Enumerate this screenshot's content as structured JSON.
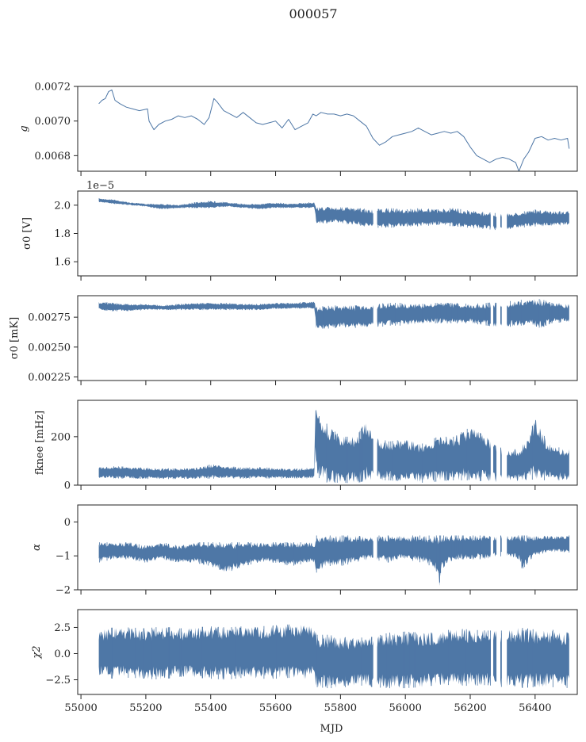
{
  "chart_data": {
    "title": "000057",
    "xlabel": "MJD",
    "xlim": [
      54990,
      56530
    ],
    "xticks": [
      55000,
      55200,
      55400,
      55600,
      55800,
      56000,
      56200,
      56400
    ],
    "color": "#4e77a6",
    "panels": [
      {
        "type": "line",
        "ylabel": "g",
        "ylim": [
          0.00671,
          0.0072
        ],
        "yticks": [
          "0.0068",
          "0.0070",
          "0.0072"
        ],
        "ytick_values": [
          0.0068,
          0.007,
          0.0072
        ],
        "offset_text": "",
        "series": {
          "x": [
            55055,
            55065,
            55075,
            55085,
            55095,
            55105,
            55120,
            55140,
            55160,
            55180,
            55205,
            55210,
            55225,
            55240,
            55260,
            55280,
            55300,
            55320,
            55340,
            55360,
            55380,
            55395,
            55410,
            55420,
            55440,
            55460,
            55480,
            55500,
            55520,
            55540,
            55560,
            55580,
            55600,
            55620,
            55640,
            55660,
            55680,
            55700,
            55715,
            55725,
            55740,
            55760,
            55780,
            55800,
            55820,
            55840,
            55860,
            55880,
            55900,
            55920,
            55940,
            55960,
            55980,
            56000,
            56020,
            56040,
            56060,
            56080,
            56100,
            56120,
            56140,
            56160,
            56180,
            56200,
            56220,
            56240,
            56260,
            56280,
            56300,
            56320,
            56340,
            56350,
            56365,
            56380,
            56400,
            56420,
            56440,
            56460,
            56480,
            56500,
            56505
          ],
          "y": [
            0.0071,
            0.00712,
            0.00713,
            0.00717,
            0.00718,
            0.00712,
            0.0071,
            0.00708,
            0.00707,
            0.00706,
            0.00707,
            0.007,
            0.00695,
            0.00698,
            0.007,
            0.00701,
            0.00703,
            0.00702,
            0.00703,
            0.00701,
            0.00698,
            0.00702,
            0.00713,
            0.00711,
            0.00706,
            0.00704,
            0.00702,
            0.00705,
            0.00702,
            0.00699,
            0.00698,
            0.00699,
            0.007,
            0.00696,
            0.00701,
            0.00695,
            0.00697,
            0.00699,
            0.00704,
            0.00703,
            0.00705,
            0.00704,
            0.00704,
            0.00703,
            0.00704,
            0.00703,
            0.007,
            0.00697,
            0.0069,
            0.00686,
            0.00688,
            0.00691,
            0.00692,
            0.00693,
            0.00694,
            0.00696,
            0.00694,
            0.00692,
            0.00693,
            0.00694,
            0.00693,
            0.00694,
            0.00691,
            0.00685,
            0.0068,
            0.00678,
            0.00676,
            0.00678,
            0.00679,
            0.00678,
            0.00676,
            0.00671,
            0.00678,
            0.00682,
            0.0069,
            0.00691,
            0.00689,
            0.0069,
            0.00689,
            0.0069,
            0.00684
          ]
        }
      },
      {
        "type": "area",
        "ylabel": "σ0 [V]",
        "ylim": [
          1.5,
          2.1
        ],
        "yticks": [
          "1.6",
          "1.8",
          "2.0"
        ],
        "ytick_values": [
          1.6,
          1.8,
          2.0
        ],
        "offset_text": "1e−5",
        "gaps": [
          [
            55902,
            55912
          ],
          [
            56265,
            56270
          ],
          [
            56282,
            56292
          ],
          [
            56298,
            56312
          ]
        ],
        "envelope": {
          "x": [
            55055,
            55100,
            55150,
            55200,
            55250,
            55300,
            55350,
            55400,
            55450,
            55500,
            55550,
            55600,
            55650,
            55700,
            55720,
            55725,
            55800,
            55850,
            55900,
            55950,
            56000,
            56050,
            56100,
            56150,
            56200,
            56250,
            56300,
            56350,
            56400,
            56450,
            56505
          ],
          "low": [
            2.02,
            2.01,
            2.0,
            1.99,
            1.97,
            1.98,
            1.98,
            1.98,
            1.99,
            1.98,
            1.97,
            1.98,
            1.98,
            1.98,
            1.98,
            1.87,
            1.87,
            1.86,
            1.84,
            1.84,
            1.85,
            1.85,
            1.86,
            1.85,
            1.84,
            1.83,
            1.82,
            1.84,
            1.85,
            1.85,
            1.86
          ],
          "high": [
            2.05,
            2.04,
            2.02,
            2.01,
            2.01,
            2.0,
            2.02,
            2.03,
            2.02,
            2.01,
            2.01,
            2.02,
            2.01,
            2.02,
            2.02,
            1.99,
            1.99,
            1.98,
            1.97,
            1.98,
            1.97,
            1.98,
            1.97,
            1.98,
            1.96,
            1.95,
            1.94,
            1.95,
            1.97,
            1.96,
            1.96
          ]
        }
      },
      {
        "type": "area",
        "ylabel": "σ0 [mK]",
        "ylim": [
          0.00222,
          0.00293
        ],
        "yticks": [
          "0.00225",
          "0.00250",
          "0.00275"
        ],
        "ytick_values": [
          0.00225,
          0.0025,
          0.00275
        ],
        "offset_text": "",
        "gaps": [
          [
            55902,
            55912
          ],
          [
            56265,
            56270
          ],
          [
            56282,
            56292
          ],
          [
            56298,
            56312
          ]
        ],
        "envelope": {
          "x": [
            55055,
            55100,
            55150,
            55200,
            55250,
            55300,
            55350,
            55400,
            55450,
            55500,
            55550,
            55600,
            55650,
            55700,
            55720,
            55725,
            55800,
            55850,
            55900,
            55950,
            56000,
            56050,
            56100,
            56150,
            56200,
            56250,
            56300,
            56350,
            56380,
            56420,
            56450,
            56505
          ],
          "low": [
            0.00281,
            0.0028,
            0.0028,
            0.00281,
            0.00281,
            0.00281,
            0.00281,
            0.00281,
            0.00281,
            0.00281,
            0.00281,
            0.00282,
            0.00282,
            0.00282,
            0.00282,
            0.00265,
            0.00266,
            0.00266,
            0.00266,
            0.00268,
            0.00268,
            0.0027,
            0.0027,
            0.0027,
            0.0027,
            0.00268,
            0.00266,
            0.00268,
            0.00268,
            0.00266,
            0.0027,
            0.00271
          ],
          "high": [
            0.00288,
            0.00287,
            0.00286,
            0.00286,
            0.00285,
            0.00286,
            0.00287,
            0.00287,
            0.00287,
            0.00286,
            0.00286,
            0.00287,
            0.00287,
            0.00288,
            0.00288,
            0.00284,
            0.00285,
            0.00285,
            0.00286,
            0.00287,
            0.00287,
            0.00286,
            0.00287,
            0.00287,
            0.00286,
            0.00287,
            0.00288,
            0.00289,
            0.00291,
            0.0029,
            0.00287,
            0.00286
          ]
        }
      },
      {
        "type": "area",
        "ylabel": "fknee [mHz]",
        "ylim": [
          0,
          350
        ],
        "yticks": [
          "0",
          "200"
        ],
        "ytick_values": [
          0,
          200
        ],
        "offset_text": "",
        "gaps": [
          [
            55902,
            55912
          ],
          [
            56265,
            56270
          ],
          [
            56282,
            56292
          ],
          [
            56298,
            56312
          ]
        ],
        "envelope": {
          "x": [
            55055,
            55100,
            55150,
            55200,
            55250,
            55300,
            55350,
            55400,
            55450,
            55500,
            55550,
            55600,
            55650,
            55700,
            55720,
            55722,
            55728,
            55740,
            55760,
            55800,
            55850,
            55880,
            55900,
            55950,
            56000,
            56050,
            56100,
            56150,
            56200,
            56250,
            56300,
            56350,
            56380,
            56400,
            56420,
            56450,
            56505
          ],
          "low": [
            30,
            28,
            27,
            26,
            25,
            26,
            26,
            27,
            28,
            27,
            28,
            27,
            28,
            28,
            28,
            120,
            40,
            20,
            10,
            10,
            8,
            20,
            20,
            20,
            15,
            10,
            15,
            20,
            20,
            15,
            10,
            15,
            20,
            25,
            20,
            20,
            20
          ],
          "high": [
            75,
            78,
            76,
            72,
            70,
            68,
            72,
            85,
            80,
            72,
            75,
            70,
            68,
            70,
            75,
            350,
            290,
            280,
            250,
            200,
            200,
            270,
            200,
            180,
            190,
            170,
            200,
            200,
            240,
            200,
            150,
            150,
            200,
            280,
            220,
            160,
            150
          ]
        }
      },
      {
        "type": "area",
        "ylabel": "α",
        "ylim": [
          -2,
          0.5
        ],
        "yticks": [
          "−2",
          "−1",
          "0"
        ],
        "ytick_values": [
          -2,
          -1,
          0
        ],
        "offset_text": "",
        "gaps": [
          [
            55902,
            55912
          ],
          [
            56265,
            56270
          ],
          [
            56282,
            56292
          ],
          [
            56298,
            56312
          ]
        ],
        "envelope": {
          "x": [
            55055,
            55100,
            55150,
            55200,
            55250,
            55300,
            55350,
            55400,
            55450,
            55500,
            55550,
            55600,
            55650,
            55700,
            55720,
            55725,
            55760,
            55800,
            55850,
            55900,
            55950,
            56000,
            56050,
            56080,
            56100,
            56105,
            56110,
            56150,
            56200,
            56250,
            56300,
            56350,
            56360,
            56400,
            56450,
            56505
          ],
          "low": [
            -1.2,
            -1.1,
            -1.1,
            -1.2,
            -1.1,
            -1.2,
            -1.2,
            -1.3,
            -1.5,
            -1.3,
            -1.2,
            -1.2,
            -1.3,
            -1.2,
            -1.2,
            -1.5,
            -1.3,
            -1.3,
            -1.2,
            -1.1,
            -1.2,
            -1.1,
            -1.2,
            -1.3,
            -1.5,
            -1.9,
            -1.4,
            -1.1,
            -1.1,
            -1.1,
            -1.0,
            -1.1,
            -1.4,
            -1.0,
            -0.9,
            -0.9
          ],
          "high": [
            -0.6,
            -0.6,
            -0.6,
            -0.7,
            -0.6,
            -0.7,
            -0.6,
            -0.6,
            -0.6,
            -0.6,
            -0.6,
            -0.6,
            -0.6,
            -0.6,
            -0.6,
            -0.4,
            -0.4,
            -0.4,
            -0.4,
            -0.4,
            -0.4,
            -0.4,
            -0.4,
            -0.4,
            -0.4,
            -0.4,
            -0.4,
            -0.4,
            -0.4,
            -0.4,
            -0.4,
            -0.4,
            -0.4,
            -0.4,
            -0.4,
            -0.4
          ]
        }
      },
      {
        "type": "area",
        "ylabel": "χ2",
        "ylim": [
          -3.9,
          4.2
        ],
        "yticks": [
          "−2.5",
          "0.0",
          "2.5"
        ],
        "ytick_values": [
          -2.5,
          0,
          2.5
        ],
        "offset_text": "",
        "gaps": [
          [
            55902,
            55912
          ],
          [
            56265,
            56270
          ],
          [
            56282,
            56292
          ],
          [
            56298,
            56312
          ]
        ],
        "envelope": {
          "x": [
            55055,
            55100,
            55150,
            55200,
            55250,
            55300,
            55350,
            55400,
            55450,
            55500,
            55550,
            55600,
            55650,
            55700,
            55720,
            55725,
            55760,
            55800,
            55850,
            55900,
            55950,
            56000,
            56050,
            56100,
            56150,
            56200,
            56250,
            56300,
            56350,
            56400,
            56450,
            56505
          ],
          "low": [
            -2.2,
            -2.4,
            -2.3,
            -2.4,
            -2.5,
            -2.2,
            -2.3,
            -2.4,
            -2.5,
            -2.3,
            -2.4,
            -2.4,
            -2.3,
            -2.5,
            -2.3,
            -3.2,
            -3.3,
            -3.3,
            -3.0,
            -3.2,
            -3.3,
            -3.3,
            -3.2,
            -3.0,
            -3.0,
            -3.1,
            -3.0,
            -3.2,
            -3.3,
            -3.2,
            -3.2,
            -3.3
          ],
          "high": [
            2.3,
            2.5,
            2.5,
            2.4,
            2.6,
            2.4,
            2.5,
            2.6,
            2.5,
            2.6,
            2.6,
            2.7,
            2.8,
            3.0,
            2.5,
            1.8,
            1.8,
            1.6,
            1.5,
            1.6,
            2.0,
            2.1,
            2.0,
            2.0,
            2.4,
            2.3,
            2.2,
            2.2,
            2.5,
            2.3,
            2.3,
            2.0
          ]
        }
      }
    ]
  }
}
